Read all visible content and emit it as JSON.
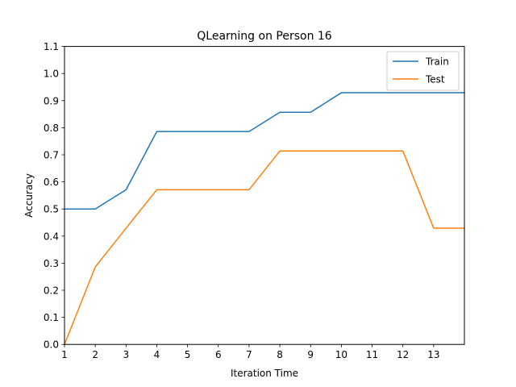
{
  "chart_data": {
    "type": "line",
    "title": "QLearning on Person 16",
    "xlabel": "Iteration Time",
    "ylabel": "Accuracy",
    "xlim": [
      1,
      14
    ],
    "ylim": [
      0.0,
      1.1
    ],
    "x_ticks": [
      1,
      2,
      3,
      4,
      5,
      6,
      7,
      8,
      9,
      10,
      11,
      12,
      13
    ],
    "y_ticks": [
      "0.0",
      "0.1",
      "0.2",
      "0.3",
      "0.4",
      "0.5",
      "0.6",
      "0.7",
      "0.8",
      "0.9",
      "1.0",
      "1.1"
    ],
    "grid": false,
    "legend_position": "top-right",
    "x": [
      1,
      2,
      3,
      4,
      5,
      6,
      7,
      8,
      9,
      10,
      11,
      12,
      13,
      14
    ],
    "series": [
      {
        "name": "Train",
        "color": "#1f77b4",
        "values": [
          0.5,
          0.5,
          0.571,
          0.786,
          0.786,
          0.786,
          0.786,
          0.857,
          0.857,
          0.929,
          0.929,
          0.929,
          0.929,
          0.929
        ]
      },
      {
        "name": "Test",
        "color": "#ff7f0e",
        "values": [
          0.0,
          0.286,
          0.429,
          0.571,
          0.571,
          0.571,
          0.571,
          0.714,
          0.714,
          0.714,
          0.714,
          0.714,
          0.429,
          0.429
        ]
      }
    ]
  }
}
